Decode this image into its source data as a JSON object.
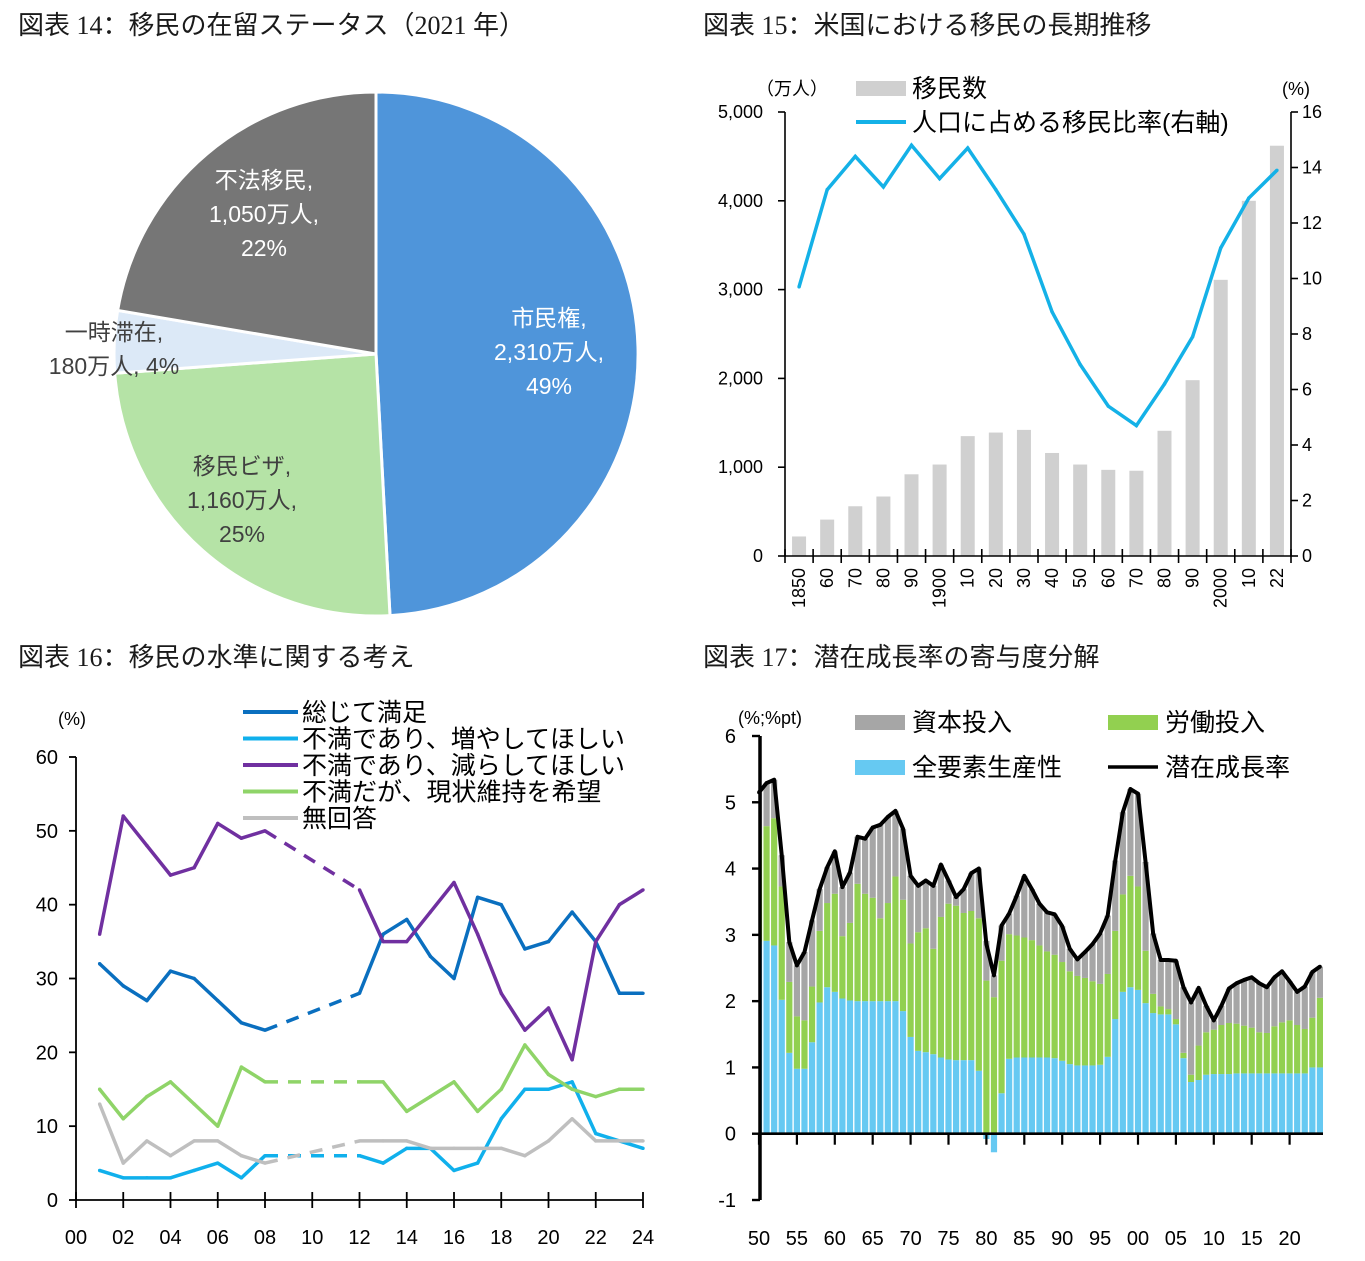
{
  "chart_data": [
    {
      "type": "pie",
      "title": "図表 14：移民の在留ステータス（2021 年）",
      "unit": "万人",
      "slices": [
        {
          "name": "市民権",
          "value": 2310,
          "percent": 49,
          "color": "#4f95da",
          "label_color": "#ffffff",
          "label": [
            "市民権,",
            "2,310万人,",
            "49%"
          ]
        },
        {
          "name": "移民ビザ",
          "value": 1160,
          "percent": 25,
          "color": "#b5e3a6",
          "label_color": "#404040",
          "label": [
            "移民ビザ,",
            "1,160万人,",
            "25%"
          ]
        },
        {
          "name": "一時滞在",
          "value": 180,
          "percent": 4,
          "color": "#dce9f7",
          "label_color": "#404040",
          "label": [
            "一時滞在,",
            "180万人,  4%"
          ]
        },
        {
          "name": "不法移民",
          "value": 1050,
          "percent": 22,
          "color": "#767676",
          "label_color": "#ffffff",
          "label": [
            "不法移民,",
            "1,050万人,",
            "22%"
          ]
        }
      ]
    },
    {
      "type": "bar+line",
      "title": "図表 15：米国における移民の長期推移",
      "x": [
        1850,
        1860,
        1870,
        1880,
        1890,
        1900,
        1910,
        1920,
        1930,
        1940,
        1950,
        1960,
        1970,
        1980,
        1990,
        2000,
        2010,
        2022
      ],
      "categories": [
        "1850",
        "60",
        "70",
        "80",
        "90",
        "1900",
        "10",
        "20",
        "30",
        "40",
        "50",
        "60",
        "70",
        "80",
        "90",
        "2000",
        "10",
        "22"
      ],
      "left_axis": {
        "label": "（万人）",
        "ylim": [
          0,
          5000
        ],
        "ticks": [
          0,
          1000,
          2000,
          3000,
          4000,
          5000
        ],
        "tick_labels": [
          "0",
          "1,000",
          "2,000",
          "3,000",
          "4,000",
          "5,000"
        ]
      },
      "right_axis": {
        "label": "(%)",
        "ylim": [
          0,
          16
        ],
        "ticks": [
          0,
          2,
          4,
          6,
          8,
          10,
          12,
          14,
          16
        ],
        "tick_labels": [
          "0",
          "2",
          "4",
          "6",
          "8",
          "10",
          "12",
          "14",
          "16"
        ]
      },
      "legend": "top",
      "series": [
        {
          "name": "移民数",
          "type": "bar",
          "axis": "left",
          "color": "#d0d0d0",
          "values": [
            220,
            410,
            560,
            670,
            920,
            1030,
            1350,
            1390,
            1420,
            1160,
            1030,
            970,
            960,
            1410,
            1980,
            3110,
            4000,
            4620
          ]
        },
        {
          "name": "人口に占める移民比率(右軸)",
          "type": "line",
          "axis": "right",
          "color": "#14b1e7",
          "values": [
            9.7,
            13.2,
            14.4,
            13.3,
            14.8,
            13.6,
            14.7,
            13.2,
            11.6,
            8.8,
            6.9,
            5.4,
            4.7,
            6.2,
            7.9,
            11.1,
            12.9,
            13.9
          ]
        }
      ]
    },
    {
      "type": "line",
      "title": "図表 16：移民の水準に関する考え",
      "ylabel": "(%)",
      "ylim": [
        0,
        60
      ],
      "yticks": [
        0,
        10,
        20,
        30,
        40,
        50,
        60
      ],
      "ytick_labels": [
        "0",
        "10",
        "20",
        "30",
        "40",
        "50",
        "60"
      ],
      "xlim": [
        2000,
        2024
      ],
      "xticks": [
        2000,
        2002,
        2004,
        2006,
        2008,
        2010,
        2012,
        2014,
        2016,
        2018,
        2020,
        2022,
        2024
      ],
      "xtick_labels": [
        "00",
        "02",
        "04",
        "06",
        "08",
        "10",
        "12",
        "14",
        "16",
        "18",
        "20",
        "22",
        "24"
      ],
      "x": [
        2001,
        2002,
        2003,
        2004,
        2005,
        2006,
        2007,
        2008,
        2009,
        2010,
        2011,
        2012,
        2013,
        2014,
        2015,
        2016,
        2017,
        2018,
        2019,
        2020,
        2021,
        2022,
        2023,
        2024
      ],
      "legend": "top-right",
      "series": [
        {
          "name": "総じて満足",
          "color": "#0a6fbf",
          "values": [
            32,
            29,
            27,
            31,
            30,
            27,
            24,
            23,
            null,
            null,
            null,
            28,
            36,
            38,
            33,
            30,
            41,
            40,
            34,
            35,
            39,
            35,
            28,
            28
          ]
        },
        {
          "name": "不満であり、増やしてほしい",
          "color": "#10b0ec",
          "values": [
            4,
            3,
            3,
            3,
            4,
            5,
            3,
            6,
            null,
            null,
            null,
            6,
            5,
            7,
            7,
            4,
            5,
            11,
            15,
            15,
            16,
            9,
            8,
            7
          ]
        },
        {
          "name": "不満であり、減らしてほしい",
          "color": "#7030a0",
          "values": [
            36,
            52,
            48,
            44,
            45,
            51,
            49,
            50,
            null,
            null,
            null,
            42,
            35,
            35,
            39,
            43,
            36,
            28,
            23,
            26,
            19,
            35,
            40,
            42
          ]
        },
        {
          "name": "不満だが、現状維持を希望",
          "color": "#8fd468",
          "values": [
            15,
            11,
            14,
            16,
            13,
            10,
            18,
            16,
            null,
            null,
            null,
            16,
            16,
            12,
            14,
            16,
            12,
            15,
            21,
            17,
            15,
            14,
            15,
            15
          ]
        },
        {
          "name": "無回答",
          "color": "#bfbfbf",
          "values": [
            13,
            5,
            8,
            6,
            8,
            8,
            6,
            5,
            null,
            null,
            null,
            8,
            8,
            8,
            7,
            7,
            7,
            7,
            6,
            8,
            11,
            8,
            8,
            8
          ]
        }
      ]
    },
    {
      "type": "stacked-bar+line",
      "title": "図表 17：潜在成長率の寄与度分解",
      "ylabel": "(%;%pt)",
      "ylim": [
        -1,
        6
      ],
      "yticks": [
        -1,
        0,
        1,
        2,
        3,
        4,
        5,
        6
      ],
      "ytick_labels": [
        "-1",
        "0",
        "1",
        "2",
        "3",
        "4",
        "5",
        "6"
      ],
      "xticks": [
        1950,
        1955,
        1960,
        1965,
        1970,
        1975,
        1980,
        1985,
        1990,
        1995,
        2000,
        2005,
        2010,
        2015,
        2020
      ],
      "xtick_labels": [
        "50",
        "55",
        "60",
        "65",
        "70",
        "75",
        "80",
        "85",
        "90",
        "95",
        "00",
        "05",
        "10",
        "15",
        "20"
      ],
      "x": [
        1950,
        1951,
        1952,
        1953,
        1954,
        1955,
        1956,
        1957,
        1958,
        1959,
        1960,
        1961,
        1962,
        1963,
        1964,
        1965,
        1966,
        1967,
        1968,
        1969,
        1970,
        1971,
        1972,
        1973,
        1974,
        1975,
        1976,
        1977,
        1978,
        1979,
        1980,
        1981,
        1982,
        1983,
        1984,
        1985,
        1986,
        1987,
        1988,
        1989,
        1990,
        1991,
        1992,
        1993,
        1994,
        1995,
        1996,
        1997,
        1998,
        1999,
        2000,
        2001,
        2002,
        2003,
        2004,
        2005,
        2006,
        2007,
        2008,
        2009,
        2010,
        2011,
        2012,
        2013,
        2014,
        2015,
        2016,
        2017,
        2018,
        2019,
        2020,
        2021,
        2022,
        2023,
        2024
      ],
      "stack_order": [
        "全要素生産性",
        "労働投入",
        "資本投入"
      ],
      "legend": "top",
      "series": [
        {
          "name": "資本投入",
          "type": "bar",
          "color": "#a6a6a6",
          "values": [
            0.65,
            0.65,
            0.58,
            0.47,
            0.6,
            0.77,
            1.03,
            1.0,
            0.63,
            0.54,
            0.64,
            0.74,
            0.76,
            0.71,
            0.83,
            1.06,
            1.41,
            1.3,
            0.99,
            1.07,
            1.02,
            0.7,
            0.72,
            0.95,
            0.79,
            0.35,
            0.13,
            0.36,
            0.57,
            0.75,
            0.6,
            0.33,
            0.53,
            0.31,
            0.6,
            0.93,
            0.77,
            0.63,
            0.59,
            0.61,
            0.54,
            0.34,
            0.25,
            0.39,
            0.56,
            0.76,
            0.88,
            1.06,
            1.24,
            1.31,
            1.4,
            1.34,
            0.91,
            0.7,
            0.74,
            0.88,
            0.99,
            1.09,
            0.87,
            0.4,
            0.14,
            0.29,
            0.52,
            0.61,
            0.69,
            0.76,
            0.74,
            0.69,
            0.74,
            0.77,
            0.59,
            0.5,
            0.64,
            0.69,
            0.47
          ]
        },
        {
          "name": "労働投入",
          "type": "bar",
          "color": "#92d050",
          "values": [
            1.6,
            1.73,
            1.92,
            1.71,
            1.07,
            0.79,
            0.73,
            0.84,
            1.08,
            1.27,
            1.48,
            0.94,
            1.17,
            1.77,
            1.62,
            1.56,
            1.25,
            1.48,
            1.88,
            1.68,
            1.41,
            1.79,
            1.87,
            1.59,
            2.12,
            2.35,
            2.33,
            2.22,
            2.25,
            2.3,
            2.31,
            2.06,
            2.0,
            1.88,
            1.84,
            1.81,
            1.77,
            1.69,
            1.6,
            1.56,
            1.49,
            1.4,
            1.35,
            1.32,
            1.27,
            1.22,
            1.25,
            1.33,
            1.47,
            1.68,
            1.56,
            0.79,
            0.29,
            0.12,
            0.08,
            0.08,
            0.08,
            0.11,
            0.52,
            0.64,
            0.67,
            0.74,
            0.77,
            0.75,
            0.72,
            0.69,
            0.62,
            0.61,
            0.71,
            0.77,
            0.8,
            0.73,
            0.67,
            0.75,
            1.05
          ]
        },
        {
          "name": "全要素生産性",
          "type": "bar",
          "color": "#66c9f2",
          "values": [
            2.9,
            2.91,
            2.84,
            2.02,
            1.22,
            0.98,
            0.98,
            1.38,
            1.98,
            2.21,
            2.14,
            2.04,
            2.01,
            2.0,
            2.0,
            2.0,
            2.0,
            2.0,
            2.0,
            1.85,
            1.46,
            1.25,
            1.23,
            1.2,
            1.15,
            1.12,
            1.11,
            1.11,
            1.11,
            0.95,
            -0.08,
            -0.28,
            0.61,
            1.13,
            1.15,
            1.15,
            1.15,
            1.15,
            1.15,
            1.14,
            1.1,
            1.05,
            1.03,
            1.03,
            1.03,
            1.04,
            1.16,
            1.73,
            2.14,
            2.21,
            2.17,
            1.97,
            1.82,
            1.8,
            1.8,
            1.65,
            1.14,
            0.78,
            0.81,
            0.89,
            0.9,
            0.9,
            0.9,
            0.91,
            0.91,
            0.91,
            0.91,
            0.91,
            0.91,
            0.91,
            0.91,
            0.91,
            0.91,
            1.0,
            1.0
          ]
        },
        {
          "name": "潜在成長率",
          "type": "line",
          "color": "#000000",
          "values": [
            5.15,
            5.29,
            5.34,
            4.2,
            2.89,
            2.54,
            2.74,
            3.22,
            3.69,
            4.02,
            4.26,
            3.72,
            3.94,
            4.48,
            4.45,
            4.62,
            4.66,
            4.78,
            4.87,
            4.6,
            3.89,
            3.74,
            3.82,
            3.74,
            4.06,
            3.82,
            3.57,
            3.69,
            3.93,
            4.0,
            2.86,
            2.39,
            3.14,
            3.32,
            3.59,
            3.89,
            3.69,
            3.47,
            3.34,
            3.31,
            3.13,
            2.79,
            2.63,
            2.74,
            2.86,
            3.02,
            3.29,
            4.12,
            4.85,
            5.2,
            5.13,
            4.1,
            3.02,
            2.62,
            2.62,
            2.61,
            2.21,
            1.98,
            2.2,
            1.93,
            1.71,
            1.93,
            2.19,
            2.27,
            2.32,
            2.36,
            2.27,
            2.21,
            2.36,
            2.45,
            2.3,
            2.14,
            2.22,
            2.44,
            2.52
          ]
        }
      ]
    }
  ]
}
